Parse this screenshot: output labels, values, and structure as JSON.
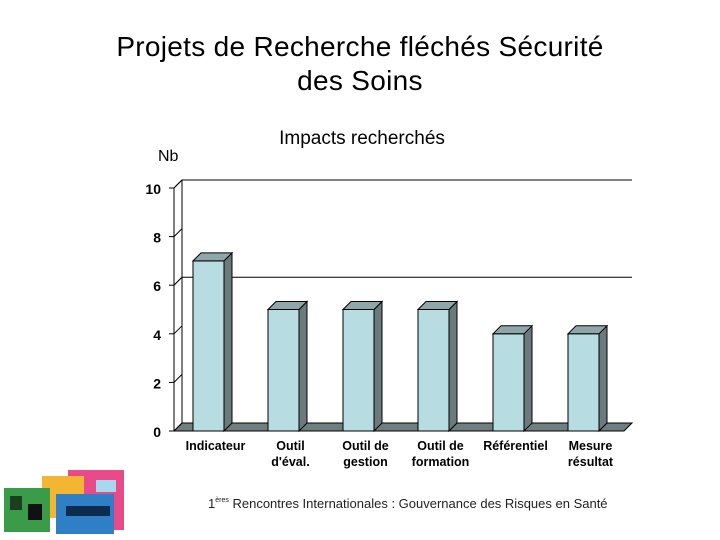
{
  "slide": {
    "title_line1": "Projets de Recherche fléchés Sécurité",
    "title_line2": "des Soins",
    "footer_sup": "ères",
    "footer_prefix": "1",
    "footer_text": " Rencontres Internationales : Gouvernance des Risques en Santé"
  },
  "chart_data": {
    "type": "bar",
    "title": "Impacts recherchés",
    "ylabel": "Nb",
    "ylim": [
      0,
      10
    ],
    "yticks": [
      0,
      2,
      4,
      6,
      8,
      10
    ],
    "gridlines_at": [
      6,
      10
    ],
    "categories": [
      [
        "Indicateur"
      ],
      [
        "Outil",
        "d'éval."
      ],
      [
        "Outil de",
        "gestion"
      ],
      [
        "Outil de",
        "formation"
      ],
      [
        "Référentiel"
      ],
      [
        "Mesure",
        "résultat"
      ]
    ],
    "values": [
      7,
      5,
      5,
      5,
      4,
      4
    ],
    "colors": {
      "bar_front": "#b7dce2",
      "bar_side": "#6b7b7d",
      "bar_top": "#8fa7ab",
      "floor": "#6f7f80"
    }
  }
}
